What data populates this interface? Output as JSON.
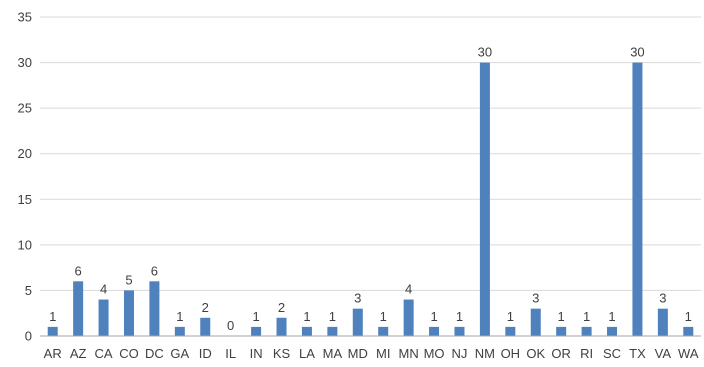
{
  "chart_data": {
    "type": "bar",
    "title": "",
    "xlabel": "",
    "ylabel": "",
    "categories": [
      "AR",
      "AZ",
      "CA",
      "CO",
      "DC",
      "GA",
      "ID",
      "IL",
      "IN",
      "KS",
      "LA",
      "MA",
      "MD",
      "MI",
      "MN",
      "MO",
      "NJ",
      "NM",
      "OH",
      "OK",
      "OR",
      "RI",
      "SC",
      "TX",
      "VA",
      "WA"
    ],
    "values": [
      1,
      6,
      4,
      5,
      6,
      1,
      2,
      0,
      1,
      2,
      1,
      1,
      3,
      1,
      4,
      1,
      1,
      30,
      1,
      3,
      1,
      1,
      1,
      30,
      3,
      1
    ],
    "ylim": [
      0,
      35
    ],
    "yticks": [
      0,
      5,
      10,
      15,
      20,
      25,
      30,
      35
    ],
    "grid": true,
    "legend": "none",
    "data_labels": true,
    "bar_color": "#4f81bd"
  }
}
